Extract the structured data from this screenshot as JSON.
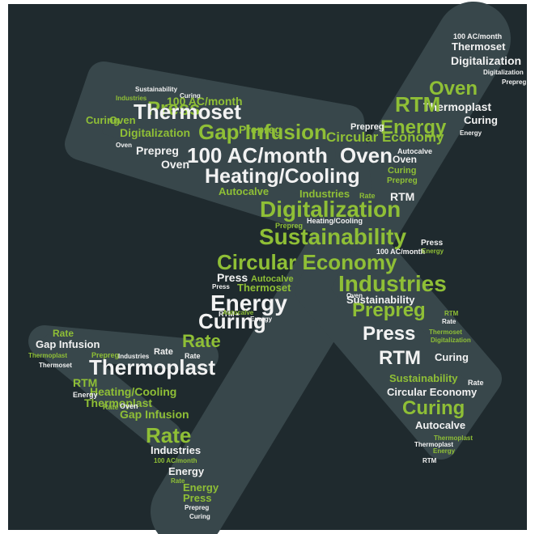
{
  "words": [
    "100 AC/month",
    "Thermoset",
    "Digitalization",
    "Digitalization",
    "Oven",
    "Prepreg",
    "Thermoplast",
    "RTM",
    "Curing",
    "Energy",
    "Energy",
    "Sustainability",
    "Curing",
    "Industries",
    "Press",
    "100 AC/month",
    "Oven",
    "Thermoset",
    "Prepreg",
    "Curing",
    "Digitalization",
    "Gap Infusion",
    "Circular Economy",
    "Prepreg",
    "Oven",
    "Prepreg",
    "100 AC/month",
    "Oven",
    "Oven",
    "Autocalve",
    "Oven",
    "Heating/Cooling",
    "Curing",
    "Prepreg",
    "Autocalve",
    "Industries",
    "Rate",
    "RTM",
    "Digitalization",
    "Prepreg",
    "Heating/Cooling",
    "Sustainability",
    "Press",
    "100 AC/month",
    "Energy",
    "Circular Economy",
    "Press",
    "Autocalve",
    "Thermoset",
    "Industries",
    "Press",
    "Energy",
    "Sustainability",
    "Oven",
    "Prepreg",
    "Curing",
    "RTM",
    "Autocalve",
    "Energy",
    "RTM",
    "Rate",
    "Press",
    "Thermoset",
    "Digitalization",
    "Rate",
    "Rate",
    "Gap Infusion",
    "Thermoplast",
    "Prepreg",
    "Industries",
    "Rate",
    "Rate",
    "Thermoset",
    "Thermoplast",
    "RTM",
    "Curing",
    "Sustainability",
    "Rate",
    "Circular Economy",
    "Curing",
    "RTM",
    "Heating/Cooling",
    "Thermoplast",
    "Energy",
    "Rate",
    "Oven",
    "Gap Infusion",
    "Autocalve",
    "Thermoplast",
    "Rate",
    "Industries",
    "100 AC/month",
    "Thermoplast",
    "Energy",
    "RTM",
    "Energy",
    "Rate",
    "Energy",
    "Press",
    "Prepreg",
    "Curing"
  ]
}
